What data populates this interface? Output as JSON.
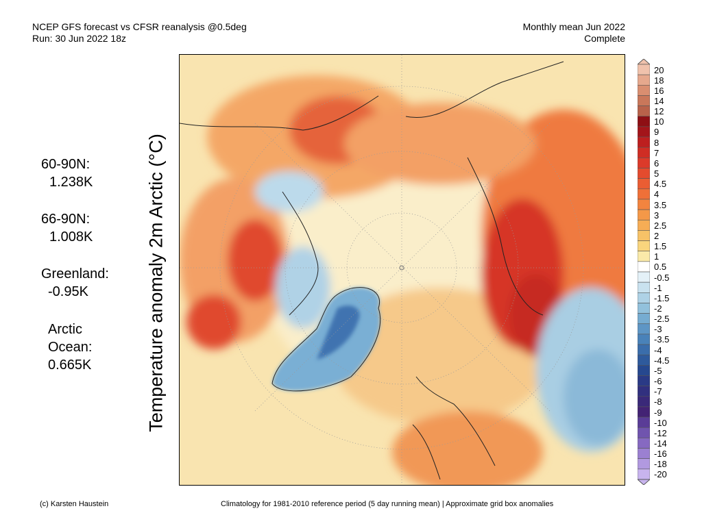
{
  "header": {
    "line1": "NCEP GFS forecast vs CFSR reanalysis @0.5deg",
    "line2": "Run: 30 Jun 2022 18z",
    "right1": "Monthly mean Jun 2022",
    "right2": "Complete"
  },
  "stats": [
    {
      "label": "60-90N:",
      "value": "1.238K"
    },
    {
      "label": "66-90N:",
      "value": "1.008K"
    },
    {
      "label": "Greenland:",
      "value": "-0.95K"
    },
    {
      "label": "Arctic",
      "label2": "Ocean:",
      "value": "0.665K"
    }
  ],
  "axis_label": "Temperature anomaly 2m Arctic (°C)",
  "footer": {
    "left": "(c) Karsten Haustein",
    "right": "Climatology for 1981-2010 reference period (5 day running mean) | Approximate grid box anomalies"
  },
  "colorbar": {
    "labels": [
      "20",
      "18",
      "16",
      "14",
      "12",
      "10",
      "9",
      "8",
      "7",
      "6",
      "5",
      "4.5",
      "4",
      "3.5",
      "3",
      "2.5",
      "2",
      "1.5",
      "1",
      "0.5",
      "-0.5",
      "-1",
      "-1.5",
      "-2",
      "-2.5",
      "-3",
      "-3.5",
      "-4",
      "-4.5",
      "-5",
      "-6",
      "-7",
      "-8",
      "-9",
      "-10",
      "-12",
      "-14",
      "-16",
      "-18",
      "-20"
    ],
    "colors": [
      "#f0c2ac",
      "#e6a88d",
      "#d98e70",
      "#c9775a",
      "#b8624a",
      "#8e0f14",
      "#a3151a",
      "#bd1f1f",
      "#cf2d24",
      "#dc3a2a",
      "#e44b2e",
      "#ea5d33",
      "#ef7038",
      "#f2843f",
      "#f49848",
      "#f6ad55",
      "#f7c267",
      "#f9d57d",
      "#faeaa9",
      "#ffffff",
      "#e4f1f8",
      "#c9e2ef",
      "#aed2e6",
      "#92c1dc",
      "#76acd1",
      "#5e96c5",
      "#4982b9",
      "#3a6dab",
      "#2e5a9c",
      "#26488f",
      "#2a3a86",
      "#31307f",
      "#3a2979",
      "#432374",
      "#5a3c97",
      "#7054ae",
      "#8669c1",
      "#9b80d1",
      "#b199e0",
      "#c8b4ee"
    ]
  },
  "map": {
    "legend_note": "Arctic polar stereographic 2m temperature anomaly"
  }
}
